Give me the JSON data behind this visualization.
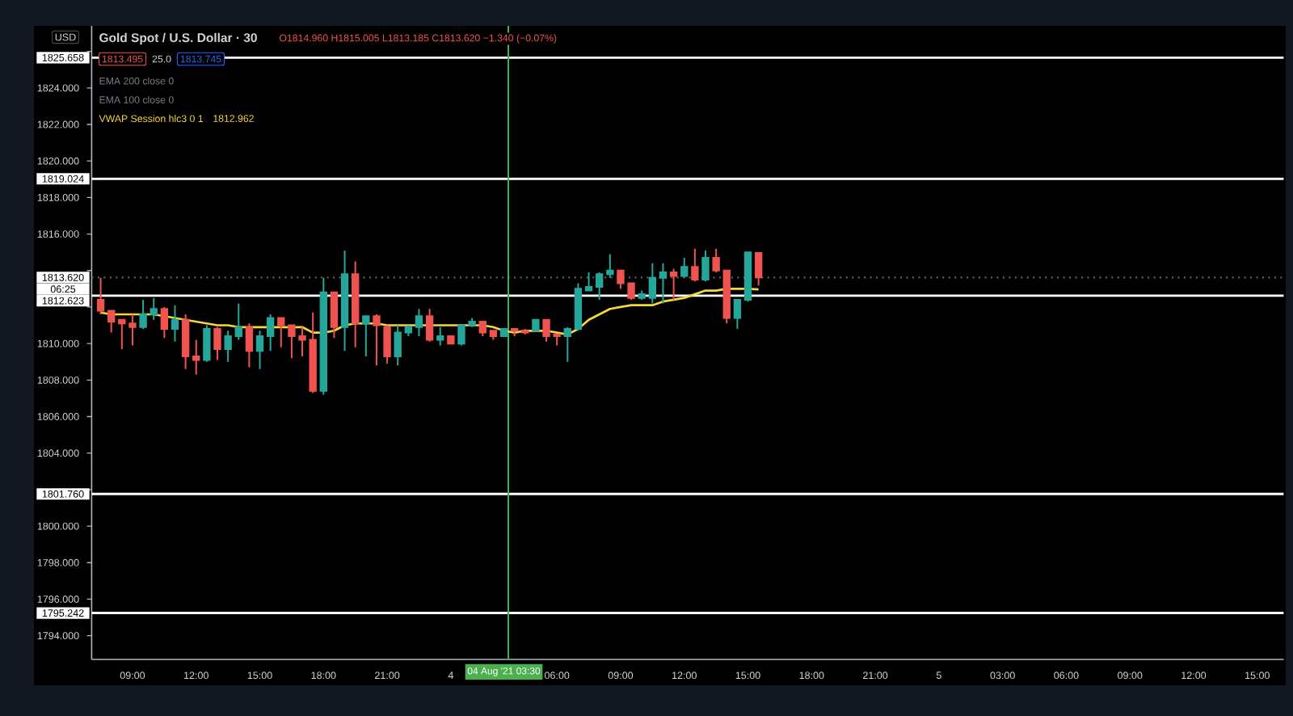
{
  "chart_data": {
    "type": "candlestick",
    "title": "Gold Spot / U.S. Dollar · 30",
    "ylabel": "USD",
    "categories": [
      null,
      null,
      null,
      "09:00",
      null,
      null,
      null,
      null,
      null,
      "12:00",
      null,
      null,
      null,
      null,
      null,
      "15:00",
      null,
      null,
      null,
      null,
      null,
      "18:00",
      null,
      null,
      null,
      null,
      null,
      "21:00",
      null,
      null,
      null,
      null,
      null,
      "4",
      null,
      null,
      null,
      null,
      "04 Aug '21 03:30",
      null,
      null,
      null,
      null,
      "06:00",
      null,
      null,
      null,
      null,
      null,
      "09:00",
      null,
      null,
      null,
      null,
      null,
      "12:00",
      null,
      null,
      null,
      null,
      null,
      "15:00",
      null,
      null,
      null,
      null,
      null,
      "18:00",
      null,
      null,
      null,
      null,
      null,
      "21:00",
      null,
      null,
      null,
      null,
      null,
      "5",
      null,
      null,
      null,
      null,
      null,
      "03:00",
      null,
      null,
      null,
      null,
      null,
      "06:00",
      null,
      null,
      null,
      null,
      null,
      "09:00",
      null,
      null,
      null,
      null,
      null,
      "12:00",
      null,
      null,
      null,
      null,
      null,
      "15:00",
      null,
      null
    ],
    "ohlc": [
      [
        1812.4,
        1813.6,
        1811.6,
        1811.8
      ],
      [
        1811.8,
        1811.8,
        1810.6,
        1811.2
      ],
      [
        1811.3,
        1811.3,
        1809.7,
        1811.1
      ],
      [
        1811.1,
        1811.6,
        1809.9,
        1810.9
      ],
      [
        1810.9,
        1812.4,
        1810.8,
        1811.6
      ],
      [
        1811.6,
        1812.5,
        1811.3,
        1811.9
      ],
      [
        1811.9,
        1812.0,
        1810.3,
        1810.8
      ],
      [
        1810.8,
        1812.1,
        1810.1,
        1811.3
      ],
      [
        1811.3,
        1811.6,
        1808.6,
        1809.3
      ],
      [
        1809.3,
        1810.2,
        1808.3,
        1809.1
      ],
      [
        1809.1,
        1811.0,
        1809.0,
        1810.8
      ],
      [
        1810.8,
        1810.9,
        1809.1,
        1809.7
      ],
      [
        1809.7,
        1810.7,
        1809.0,
        1810.4
      ],
      [
        1810.4,
        1812.2,
        1810.2,
        1810.9
      ],
      [
        1810.9,
        1811.1,
        1808.7,
        1809.6
      ],
      [
        1809.6,
        1810.7,
        1808.6,
        1810.4
      ],
      [
        1810.4,
        1811.6,
        1809.6,
        1811.4
      ],
      [
        1811.4,
        1811.4,
        1809.8,
        1811.0
      ],
      [
        1811.0,
        1811.0,
        1809.2,
        1810.4
      ],
      [
        1810.4,
        1810.9,
        1809.3,
        1810.2
      ],
      [
        1810.2,
        1811.7,
        1807.3,
        1807.4
      ],
      [
        1807.4,
        1813.6,
        1807.2,
        1812.8
      ],
      [
        1812.8,
        1812.8,
        1810.3,
        1810.9
      ],
      [
        1810.9,
        1815.1,
        1809.6,
        1813.8
      ],
      [
        1813.8,
        1814.5,
        1809.8,
        1811.1
      ],
      [
        1811.1,
        1811.5,
        1809.3,
        1811.5
      ],
      [
        1811.5,
        1811.6,
        1808.8,
        1811.0
      ],
      [
        1810.9,
        1811.0,
        1808.9,
        1809.3
      ],
      [
        1809.3,
        1811.0,
        1808.8,
        1810.6
      ],
      [
        1810.6,
        1811.0,
        1810.4,
        1810.9
      ],
      [
        1810.9,
        1811.9,
        1810.4,
        1811.5
      ],
      [
        1811.5,
        1811.9,
        1810.1,
        1810.2
      ],
      [
        1810.2,
        1810.9,
        1809.9,
        1810.4
      ],
      [
        1810.4,
        1810.4,
        1810.0,
        1810.0
      ],
      [
        1810.0,
        1811.0,
        1809.9,
        1811.0
      ],
      [
        1811.0,
        1811.4,
        1810.9,
        1811.2
      ],
      [
        1811.2,
        1811.2,
        1810.4,
        1810.6
      ],
      [
        1810.7,
        1810.7,
        1810.2,
        1810.4
      ],
      [
        1810.4,
        1810.8,
        1810.4,
        1810.8
      ],
      [
        1810.8,
        1810.8,
        1810.4,
        1810.7
      ],
      [
        1810.7,
        1810.8,
        1810.5,
        1810.6
      ],
      [
        1810.7,
        1811.3,
        1810.7,
        1811.3
      ],
      [
        1811.3,
        1811.3,
        1810.1,
        1810.4
      ],
      [
        1810.5,
        1810.5,
        1809.9,
        1810.4
      ],
      [
        1810.4,
        1810.9,
        1809.0,
        1810.8
      ],
      [
        1810.8,
        1813.3,
        1810.7,
        1813.0
      ],
      [
        1812.9,
        1813.9,
        1812.9,
        1813.1
      ],
      [
        1813.1,
        1813.9,
        1812.4,
        1813.8
      ],
      [
        1813.8,
        1814.9,
        1813.6,
        1814.0
      ],
      [
        1814.0,
        1814.0,
        1813.0,
        1813.3
      ],
      [
        1813.3,
        1813.3,
        1812.4,
        1812.5
      ],
      [
        1812.5,
        1812.9,
        1812.4,
        1812.7
      ],
      [
        1812.5,
        1814.4,
        1812.2,
        1813.6
      ],
      [
        1813.6,
        1814.4,
        1812.2,
        1813.9
      ],
      [
        1813.9,
        1814.1,
        1812.4,
        1813.7
      ],
      [
        1813.7,
        1814.7,
        1813.6,
        1814.2
      ],
      [
        1814.2,
        1815.2,
        1813.4,
        1813.5
      ],
      [
        1813.5,
        1815.1,
        1813.4,
        1814.7
      ],
      [
        1814.7,
        1815.2,
        1813.9,
        1814.0
      ],
      [
        1814.0,
        1814.0,
        1811.1,
        1811.4
      ],
      [
        1811.4,
        1812.4,
        1810.8,
        1812.4
      ],
      [
        1812.4,
        1815.0,
        1812.3,
        1815.0
      ],
      [
        1814.96,
        1815.005,
        1813.185,
        1813.62
      ],
      null,
      null,
      null,
      null,
      null,
      null,
      null,
      null,
      null,
      null,
      null,
      null,
      null,
      null,
      null,
      null,
      null,
      null,
      null,
      null,
      null,
      null,
      null,
      null,
      null,
      null,
      null,
      null,
      null,
      null,
      null,
      null,
      null,
      null,
      null,
      null,
      null,
      null,
      null,
      null,
      null,
      null,
      null,
      null,
      null,
      null,
      null,
      null,
      null
    ],
    "colors": [
      "#ef5350",
      "#ef5350",
      "#ef5350",
      "#ef5350",
      "#26a69a",
      "#26a69a",
      "#ef5350",
      "#26a69a",
      "#ef5350",
      "#ef5350",
      "#26a69a",
      "#ef5350",
      "#26a69a",
      "#26a69a",
      "#ef5350",
      "#26a69a",
      "#26a69a",
      "#ef5350",
      "#ef5350",
      "#ef5350",
      "#ef5350",
      "#26a69a",
      "#ef5350",
      "#26a69a",
      "#ef5350",
      "#26a69a",
      "#ef5350",
      "#ef5350",
      "#26a69a",
      "#26a69a",
      "#26a69a",
      "#ef5350",
      "#26a69a",
      "#ef5350",
      "#26a69a",
      "#26a69a",
      "#ef5350",
      "#ef5350",
      "#26a69a",
      "#ef5350",
      "#ef5350",
      "#26a69a",
      "#ef5350",
      "#ef5350",
      "#26a69a",
      "#26a69a",
      "#26a69a",
      "#26a69a",
      "#26a69a",
      "#ef5350",
      "#ef5350",
      "#26a69a",
      "#26a69a",
      "#26a69a",
      "#ef5350",
      "#26a69a",
      "#ef5350",
      "#26a69a",
      "#ef5350",
      "#ef5350",
      "#26a69a",
      "#26a69a",
      "#ef5350",
      null,
      null,
      null,
      null,
      null,
      null,
      null,
      null,
      null,
      null,
      null,
      null,
      null,
      null,
      null,
      null,
      null,
      null,
      null,
      null,
      null,
      null,
      null,
      null,
      null,
      null,
      null,
      null,
      null,
      null,
      null,
      null,
      null,
      null,
      null,
      null,
      null,
      null,
      null,
      null,
      null,
      null,
      null,
      null,
      null,
      null,
      null,
      null,
      null
    ],
    "series": [
      {
        "type": "line",
        "name": "VWAP Session hlc3 0 1",
        "color": "#f5d83b",
        "values": [
          1811.7,
          1811.6,
          1811.6,
          1811.6,
          1811.6,
          1811.6,
          1811.5,
          1811.4,
          1811.3,
          1811.2,
          1811.1,
          1811.0,
          1811.0,
          1810.9,
          1810.9,
          1810.9,
          1810.9,
          1810.9,
          1810.9,
          1810.9,
          1810.6,
          1810.6,
          1810.7,
          1811.0,
          1811.1,
          1811.1,
          1811.1,
          1811.0,
          1811.0,
          1811.0,
          1811.0,
          1811.0,
          1811.0,
          1811.0,
          1811.0,
          1811.0,
          1811.0,
          1810.9,
          1810.7,
          1810.6,
          1810.7,
          1810.7,
          1810.7,
          1810.6,
          1810.5,
          1810.8,
          1811.3,
          1811.6,
          1811.9,
          1812.0,
          1812.1,
          1812.1,
          1812.1,
          1812.3,
          1812.4,
          1812.5,
          1812.7,
          1812.9,
          1812.9,
          1813.0,
          1813.0,
          1813.0,
          1812.962,
          null,
          null,
          null,
          null,
          null,
          null,
          null,
          null,
          null,
          null,
          null,
          null,
          null,
          null,
          null,
          null,
          null,
          null,
          null,
          null,
          null,
          null,
          null,
          null,
          null,
          null,
          null,
          null,
          null,
          null,
          null,
          null,
          null,
          null,
          null,
          null,
          null,
          null,
          null,
          null,
          null,
          null,
          null,
          null,
          null,
          null,
          null,
          null,
          null
        ]
      }
    ],
    "ylim": [
      1792.7,
      1827.4
    ],
    "yticks": [
      {
        "value": 1794,
        "label": "1794.000"
      },
      {
        "value": 1796,
        "label": "1796.000"
      },
      {
        "value": 1798,
        "label": "1798.000"
      },
      {
        "value": 1800,
        "label": "1800.000"
      },
      {
        "value": 1802,
        "label": null
      },
      {
        "value": 1804,
        "label": "1804.000"
      },
      {
        "value": 1806,
        "label": "1806.000"
      },
      {
        "value": 1808,
        "label": "1808.000"
      },
      {
        "value": 1810,
        "label": "1810.000"
      },
      {
        "value": 1812,
        "label": null
      },
      {
        "value": 1814,
        "label": null
      },
      {
        "value": 1816,
        "label": "1816.000"
      },
      {
        "value": 1818,
        "label": "1818.000"
      },
      {
        "value": 1820,
        "label": "1820.000"
      },
      {
        "value": 1822,
        "label": "1822.000"
      },
      {
        "value": 1824,
        "label": "1824.000"
      },
      {
        "value": 1826,
        "label": null
      }
    ],
    "ref_lines": [
      {
        "axis": "y",
        "value": 1825.658,
        "label": "1825.658",
        "color": "#ffffff"
      },
      {
        "axis": "y",
        "value": 1819.024,
        "label": "1819.024",
        "color": "#ffffff"
      },
      {
        "axis": "y",
        "value": 1813.62,
        "label": "1813.620",
        "color": "#5d606b",
        "line_style": "dotted"
      },
      {
        "axis": "y",
        "value": 1812.623,
        "label": "1812.623",
        "color": "#ffffff"
      },
      {
        "axis": "y",
        "value": 1801.76,
        "label": "1801.760",
        "color": "#ffffff"
      },
      {
        "axis": "y",
        "value": 1795.242,
        "label": "1795.242",
        "color": "#ffffff"
      },
      {
        "axis": "x",
        "value": "04 Aug '21 03:30",
        "color": "#4caf50"
      }
    ],
    "annotations": [
      "O1814.960 H1815.005 L1813.185 C1813.620 −1.340 (−0.07%)",
      "1813.495",
      "25.0",
      "1813.745",
      "EMA 200 close 0",
      "EMA 100 close 0",
      "1812.962",
      "06:25"
    ],
    "legend": "top left"
  }
}
